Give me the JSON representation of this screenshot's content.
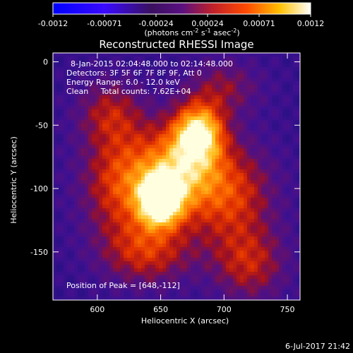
{
  "chart_data": {
    "type": "heatmap",
    "title": "Reconstructed RHESSI Image",
    "xlabel": "Heliocentric X (arcsec)",
    "ylabel": "Heliocentric Y (arcsec)",
    "xlim": [
      565,
      760
    ],
    "ylim": [
      -188,
      7
    ],
    "x_ticks": [
      600,
      650,
      700,
      750
    ],
    "y_ticks": [
      0,
      -50,
      -100,
      -150
    ],
    "colorbar": {
      "colormap": "RHESSI heat (blue-purple-red-yellow-white)",
      "range": [
        -0.0012,
        0.0012
      ],
      "ticks": [
        "-0.0012",
        "-0.00071",
        "-0.00024",
        "0.00024",
        "0.00071",
        "0.0012"
      ],
      "label_main": "(photons cm",
      "label_exp1": "-2",
      "label_mid": " s",
      "label_exp2": "-1",
      "label_mid2": " asec",
      "label_exp3": "-2",
      "label_end": ")"
    },
    "annotations": {
      "time_range": "8-Jan-2015 02:04:48.000 to 02:14:48.000",
      "detectors": "Detectors: 3F 5F 6F 7F 8F 9F, Att 0",
      "energy": "Energy Range: 6.0 - 12.0 keV",
      "clean": "Clean     Total counts: 7.62E+04",
      "peak": "Position of Peak = [648,-112]"
    },
    "peak": {
      "x": 648,
      "y": -112
    },
    "emission_sources": [
      {
        "x": 650,
        "y": -110,
        "sx": 12,
        "sy": 14,
        "amp": 1.0
      },
      {
        "x": 680,
        "y": -55,
        "sx": 14,
        "sy": 16,
        "amp": 0.85
      },
      {
        "x": 665,
        "y": -85,
        "sx": 22,
        "sy": 24,
        "amp": 0.7
      },
      {
        "x": 620,
        "y": -95,
        "sx": 22,
        "sy": 30,
        "amp": 0.55
      },
      {
        "x": 705,
        "y": -105,
        "sx": 24,
        "sy": 28,
        "amp": 0.5
      },
      {
        "x": 640,
        "y": -150,
        "sx": 25,
        "sy": 18,
        "amp": 0.45
      },
      {
        "x": 720,
        "y": -160,
        "sx": 20,
        "sy": 20,
        "amp": 0.4
      },
      {
        "x": 610,
        "y": -40,
        "sx": 18,
        "sy": 18,
        "amp": 0.35
      },
      {
        "x": 700,
        "y": -20,
        "sx": 20,
        "sy": 15,
        "amp": 0.3
      }
    ]
  },
  "footer": {
    "date": "6-Jul-2017 21:42"
  }
}
